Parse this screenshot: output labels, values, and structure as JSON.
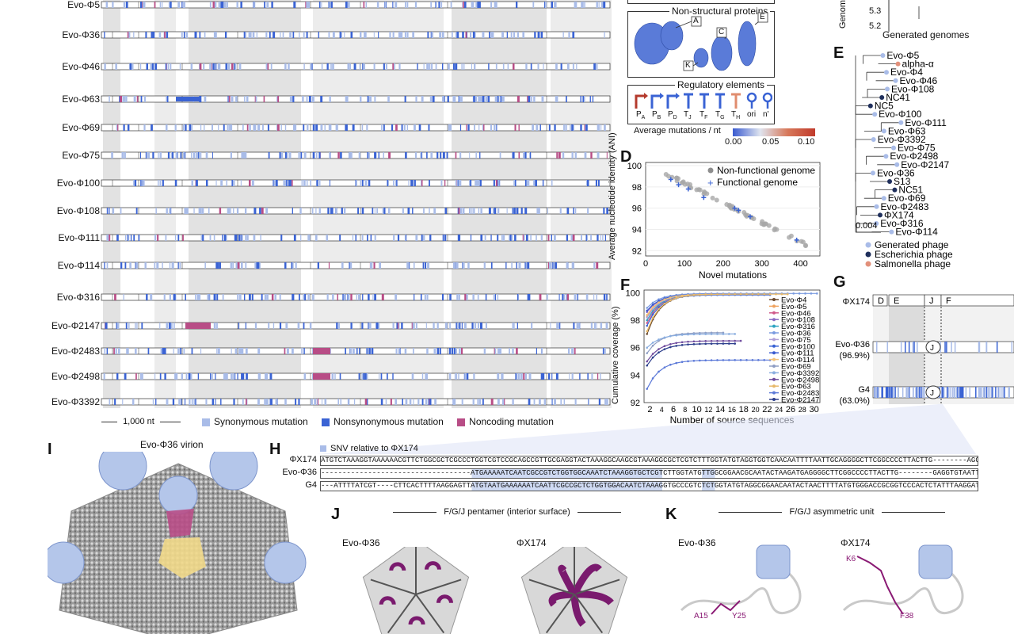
{
  "colors": {
    "synonymous": "#a9bce8",
    "nonsynonymous": "#3a63d4",
    "noncoding": "#b84d86",
    "generated": "#a9bce8",
    "escherichia": "#1f2f5c",
    "salmonella": "#e2907a",
    "functional": "#3a63d4",
    "nonfunctional": "#9a9a9a"
  },
  "panel_a": {
    "genomes": [
      "Evo-Φ5",
      "Evo-Φ36",
      "Evo-Φ46",
      "Evo-Φ63",
      "Evo-Φ69",
      "Evo-Φ75",
      "Evo-Φ100",
      "Evo-Φ108",
      "Evo-Φ111",
      "Evo-Φ114",
      "Evo-Φ316",
      "Evo-Φ2147",
      "Evo-Φ2483",
      "Evo-Φ2498",
      "Evo-Φ3392"
    ],
    "scale_label": "1,000 nt",
    "legend": [
      "Synonymous mutation",
      "Nonsynonymous mutation",
      "Noncoding mutation"
    ]
  },
  "panel_b": {
    "axis_title": "Genom",
    "ticks": [
      "5.3",
      "5.2"
    ],
    "xlabel": "Generated genomes"
  },
  "panel_c": {
    "nonstructural_title": "Non-structural proteins",
    "protein_labels": [
      "A",
      "C",
      "E",
      "K"
    ],
    "regulatory_title": "Regulatory elements",
    "element_labels": [
      "P",
      "P",
      "P",
      "T",
      "T",
      "T",
      "T",
      "ori",
      "n'"
    ],
    "element_subs": [
      "A",
      "B",
      "D",
      "J",
      "F",
      "G",
      "H",
      "",
      ""
    ],
    "colorbar_title": "Average mutations / nt",
    "colorbar_ticks": [
      "0.00",
      "0.05",
      "0.10"
    ]
  },
  "panel_d": {
    "letter": "D",
    "ylabel": "Average nucleotide identity (ANI)",
    "xlabel": "Novel mutations",
    "yticks": [
      "100",
      "98",
      "96",
      "94",
      "92"
    ],
    "xticks": [
      "0",
      "100",
      "200",
      "300",
      "400"
    ],
    "legend": [
      "Non-functional genome",
      "Functional genome"
    ]
  },
  "panel_e": {
    "letter": "E",
    "leaves": [
      "Evo-Φ5",
      "alpha-α",
      "Evo-Φ4",
      "Evo-Φ46",
      "Evo-Φ108",
      "NC41",
      "NC5",
      "Evo-Φ100",
      "Evo-Φ111",
      "Evo-Φ63",
      "Evo-Φ3392",
      "Evo-Φ75",
      "Evo-Φ2498",
      "Evo-Φ2147",
      "Evo-Φ36",
      "S13",
      "NC51",
      "Evo-Φ69",
      "Evo-Φ2483",
      "ΦX174",
      "Evo-Φ316",
      "Evo-Φ114"
    ],
    "leaf_types": [
      "g",
      "s",
      "g",
      "g",
      "g",
      "e",
      "e",
      "g",
      "g",
      "g",
      "g",
      "g",
      "g",
      "g",
      "g",
      "e",
      "e",
      "g",
      "g",
      "e",
      "g",
      "g"
    ],
    "scale": "0.004",
    "legend": [
      "Generated phage",
      "Escherichia phage",
      "Salmonella phage"
    ]
  },
  "panel_f": {
    "letter": "F",
    "ylabel": "Cumulative coverage (%)",
    "xlabel": "Number of source sequences",
    "yticks": [
      "100",
      "98",
      "96",
      "94",
      "92"
    ],
    "xticks": [
      "2",
      "6",
      "10",
      "14",
      "18",
      "22",
      "26",
      "30"
    ],
    "xtick_labels": [
      "2",
      "4",
      "6",
      "8",
      "10",
      "12",
      "14",
      "16",
      "18",
      "20",
      "22",
      "24",
      "26",
      "28",
      "30"
    ],
    "legend": [
      "Evo-Φ4",
      "Evo-Φ5",
      "Evo-Φ46",
      "Evo-Φ108",
      "Evo-Φ316",
      "Evo-Φ36",
      "Evo-Φ75",
      "Evo-Φ100",
      "Evo-Φ111",
      "Evo-Φ114",
      "Evo-Φ69",
      "Evo-Φ3392",
      "Evo-Φ2498",
      "Evo-Φ63",
      "Evo-Φ2483",
      "Evo-Φ2147"
    ]
  },
  "panel_g": {
    "letter": "G",
    "rows": [
      "ΦX174",
      "Evo-Φ36",
      "G4"
    ],
    "subs": [
      "",
      "(96.9%)",
      "(63.0%)"
    ],
    "genes": [
      "D",
      "E",
      "J",
      "F"
    ]
  },
  "panel_h": {
    "letter": "H",
    "legend": "SNV relative to ΦX174",
    "rows": [
      "ΦX174",
      "Evo-Φ36",
      "G4"
    ],
    "seqs": [
      "ATGTCTAAAGGTAAAAAACGTTCTGGCGCTCGCCCTGGTCGTCCGCAGCCGTTGCGAGGTACTAAAGGCAAGCGTAAAGGCGCTCGTCTTTGGTATGTAGGTGGTCAACAATTTTAATTGCAGGGGCTTCGGCCCCTTACTTG--------AGGATAAATTATG",
      "-----------------------------------ATGAAAAATCAATCGCCGTCTGGTGGCAAATCTAAAGGTGCTCGTCTTGGTATGTTGGCGGAACGCAATACTAAGATGAGGGGCTTCGGCCCCTTACTTG--------GAGGTGTAATTATG",
      "---ATTTTATCGT----CTTCACTTTTAAGGAGTTATGTAATGAAAAAATCAATTCGCCGCTCTGGTGGACAATCTAAAGGTGCCCGTCTCTGGTATGTAGGCGGAACAATACTAACTTTTATGTGGGACCGCGGTCCCACTCTATTTAAGGATACAAAATG"
    ]
  },
  "panel_i": {
    "letter": "I",
    "title": "Evo-Φ36 virion"
  },
  "panel_j": {
    "letter": "J",
    "title": "F/G/J pentamer (interior surface)",
    "labels": [
      "Evo-Φ36",
      "ΦX174"
    ]
  },
  "panel_k": {
    "letter": "K",
    "title": "F/G/J asymmetric unit",
    "labels": [
      "Evo-Φ36",
      "ΦX174"
    ],
    "residues": [
      "A15",
      "Y25",
      "K6",
      "F38"
    ]
  }
}
